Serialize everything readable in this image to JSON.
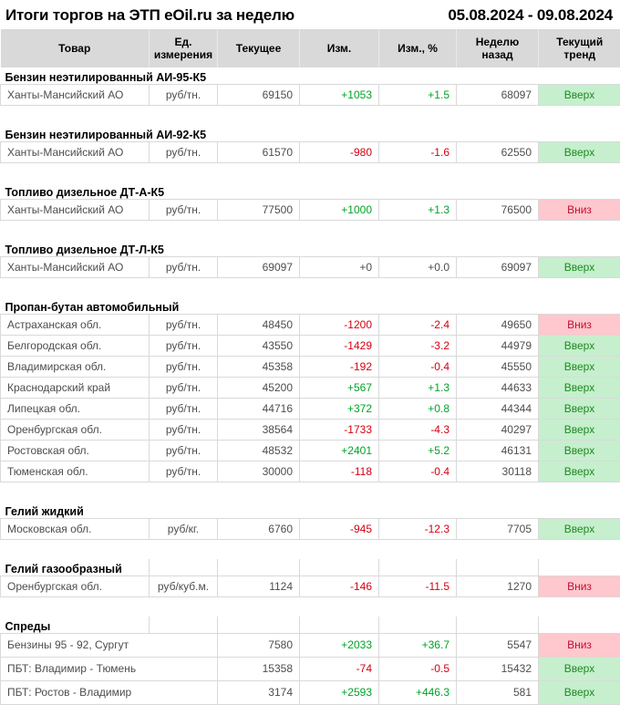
{
  "title": "Итоги торгов на ЭТП eOil.ru за неделю",
  "date_range": "05.08.2024 - 09.08.2024",
  "columns": [
    "Товар",
    "Ед. измерения",
    "Текущее",
    "Изм.",
    "Изм., %",
    "Неделю назад",
    "Текущий тренд"
  ],
  "colors": {
    "positive_change": "#00a326",
    "negative_change": "#d40011",
    "trend_up_bg": "#c6efce",
    "trend_up_text": "#1e8a1e",
    "trend_down_bg": "#ffc7ce",
    "trend_down_text": "#c21030",
    "header_bg": "#d9d9d9"
  },
  "sections": [
    {
      "name": "Бензин неэтилированный АИ-95-К5",
      "rows": [
        {
          "product": "Ханты-Мансийский АО",
          "unit": "руб/тн.",
          "current": "69150",
          "change": "+1053",
          "change_pct": "+1.5",
          "week_ago": "68097",
          "trend": "Вверх",
          "trend_dir": "up"
        }
      ]
    },
    {
      "name": "Бензин неэтилированный АИ-92-К5",
      "rows": [
        {
          "product": "Ханты-Мансийский АО",
          "unit": "руб/тн.",
          "current": "61570",
          "change": "-980",
          "change_pct": "-1.6",
          "week_ago": "62550",
          "trend": "Вверх",
          "trend_dir": "up"
        }
      ]
    },
    {
      "name": "Топливо дизельное ДТ-А-К5",
      "rows": [
        {
          "product": "Ханты-Мансийский АО",
          "unit": "руб/тн.",
          "current": "77500",
          "change": "+1000",
          "change_pct": "+1.3",
          "week_ago": "76500",
          "trend": "Вниз",
          "trend_dir": "down"
        }
      ]
    },
    {
      "name": "Топливо дизельное ДТ-Л-К5",
      "rows": [
        {
          "product": "Ханты-Мансийский АО",
          "unit": "руб/тн.",
          "current": "69097",
          "change": "+0",
          "change_pct": "+0.0",
          "week_ago": "69097",
          "trend": "Вверх",
          "trend_dir": "up"
        }
      ]
    },
    {
      "name": "Пропан-бутан автомобильный",
      "rows": [
        {
          "product": "Астраханская обл.",
          "unit": "руб/тн.",
          "current": "48450",
          "change": "-1200",
          "change_pct": "-2.4",
          "week_ago": "49650",
          "trend": "Вниз",
          "trend_dir": "down"
        },
        {
          "product": "Белгородская обл.",
          "unit": "руб/тн.",
          "current": "43550",
          "change": "-1429",
          "change_pct": "-3.2",
          "week_ago": "44979",
          "trend": "Вверх",
          "trend_dir": "up"
        },
        {
          "product": "Владимирская обл.",
          "unit": "руб/тн.",
          "current": "45358",
          "change": "-192",
          "change_pct": "-0.4",
          "week_ago": "45550",
          "trend": "Вверх",
          "trend_dir": "up"
        },
        {
          "product": "Краснодарский край",
          "unit": "руб/тн.",
          "current": "45200",
          "change": "+567",
          "change_pct": "+1.3",
          "week_ago": "44633",
          "trend": "Вверх",
          "trend_dir": "up"
        },
        {
          "product": "Липецкая обл.",
          "unit": "руб/тн.",
          "current": "44716",
          "change": "+372",
          "change_pct": "+0.8",
          "week_ago": "44344",
          "trend": "Вверх",
          "trend_dir": "up"
        },
        {
          "product": "Оренбургская обл.",
          "unit": "руб/тн.",
          "current": "38564",
          "change": "-1733",
          "change_pct": "-4.3",
          "week_ago": "40297",
          "trend": "Вверх",
          "trend_dir": "up"
        },
        {
          "product": "Ростовская обл.",
          "unit": "руб/тн.",
          "current": "48532",
          "change": "+2401",
          "change_pct": "+5.2",
          "week_ago": "46131",
          "trend": "Вверх",
          "trend_dir": "up"
        },
        {
          "product": "Тюменская обл.",
          "unit": "руб/тн.",
          "current": "30000",
          "change": "-118",
          "change_pct": "-0.4",
          "week_ago": "30118",
          "trend": "Вверх",
          "trend_dir": "up"
        }
      ]
    },
    {
      "name": "Гелий жидкий",
      "rows": [
        {
          "product": "Московская обл.",
          "unit": "руб/кг.",
          "current": "6760",
          "change": "-945",
          "change_pct": "-12.3",
          "week_ago": "7705",
          "trend": "Вверх",
          "trend_dir": "up"
        }
      ]
    },
    {
      "name": "Гелий газообразный",
      "rows": [
        {
          "product": "Оренбургская обл.",
          "unit": "руб/куб.м.",
          "current": "1124",
          "change": "-146",
          "change_pct": "-11.5",
          "week_ago": "1270",
          "trend": "Вниз",
          "trend_dir": "down"
        }
      ]
    },
    {
      "name": "Спреды",
      "rows": [
        {
          "product": "Бензины 95 - 92, Сургут",
          "unit": "",
          "current": "7580",
          "change": "+2033",
          "change_pct": "+36.7",
          "week_ago": "5547",
          "trend": "Вниз",
          "trend_dir": "down"
        },
        {
          "product": "ПБТ: Владимир - Тюмень",
          "unit": "",
          "current": "15358",
          "change": "-74",
          "change_pct": "-0.5",
          "week_ago": "15432",
          "trend": "Вверх",
          "trend_dir": "up"
        },
        {
          "product": "ПБТ: Ростов - Владимир",
          "unit": "",
          "current": "3174",
          "change": "+2593",
          "change_pct": "+446.3",
          "week_ago": "581",
          "trend": "Вверх",
          "trend_dir": "up"
        }
      ]
    }
  ]
}
